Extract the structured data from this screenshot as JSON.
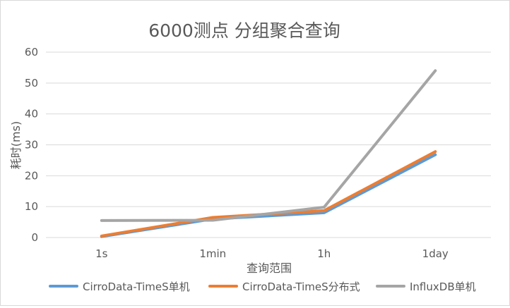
{
  "chart_data": {
    "type": "line",
    "title": "6000测点 分组聚合查询",
    "xlabel": "查询范围",
    "ylabel": "耗时(ms)",
    "categories": [
      "1s",
      "1min",
      "1h",
      "1day"
    ],
    "ylim": [
      0,
      60
    ],
    "yticks": [
      "0",
      "10",
      "20",
      "30",
      "40",
      "50",
      "60"
    ],
    "grid": true,
    "legend_position": "bottom",
    "series": [
      {
        "name": "CirroData-TimeS单机",
        "values": [
          0.3,
          6.0,
          8.0,
          26.8
        ],
        "color": "#5b9bd5"
      },
      {
        "name": "CirroData-TimeS分布式",
        "values": [
          0.5,
          6.5,
          8.7,
          27.8
        ],
        "color": "#ed7d31"
      },
      {
        "name": "InfluxDB单机",
        "values": [
          5.5,
          5.6,
          9.8,
          54.0
        ],
        "color": "#a5a5a5"
      }
    ]
  }
}
